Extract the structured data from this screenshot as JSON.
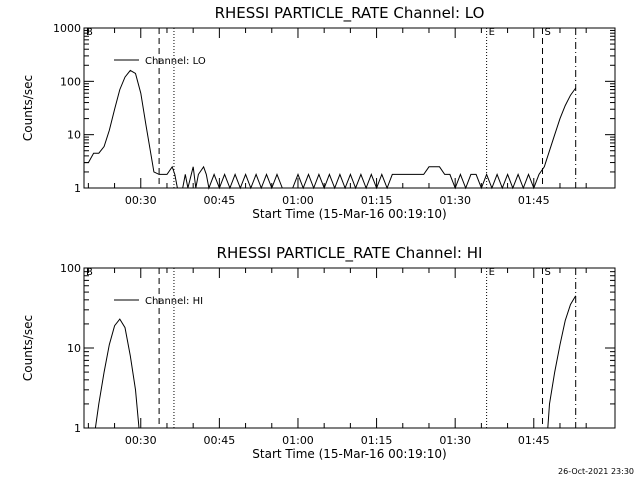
{
  "footer": {
    "timestamp": "26-Oct-2021 23:30"
  },
  "chart_data": [
    {
      "type": "line",
      "title": "RHESSI PARTICLE_RATE Channel: LO",
      "xlabel": "Start Time (15-Mar-16 00:19:10)",
      "ylabel": "Counts/sec",
      "yscale": "log",
      "ylim": [
        1,
        1000
      ],
      "ytick_values": [
        1,
        10,
        100,
        1000
      ],
      "ytick_labels": [
        "1",
        "10",
        "100",
        "1000"
      ],
      "xlim": [
        "00:19:10",
        "02:00:30"
      ],
      "xtick_values": [
        "00:30",
        "00:45",
        "01:00",
        "01:15",
        "01:30",
        "01:45"
      ],
      "xtick_labels": [
        "00:30",
        "00:45",
        "01:00",
        "01:15",
        "01:30",
        "01:45"
      ],
      "legend": {
        "label": "Channel: LO",
        "position": "top-left"
      },
      "markers": [
        {
          "time": "00:19:10",
          "label": "B",
          "style": "dotted"
        },
        {
          "time": "00:33:30",
          "label": "",
          "style": "dashed"
        },
        {
          "time": "00:36:20",
          "label": "",
          "style": "dotted"
        },
        {
          "time": "01:36:00",
          "label": "E",
          "style": "dotted"
        },
        {
          "time": "01:46:40",
          "label": "S",
          "style": "dashed"
        },
        {
          "time": "01:53:00",
          "label": "",
          "style": "dashdot"
        }
      ],
      "series": [
        {
          "name": "Channel: LO",
          "points": [
            [
              "00:19:10",
              3
            ],
            [
              "00:20:00",
              3
            ],
            [
              "00:21:00",
              4.5
            ],
            [
              "00:22:00",
              4.5
            ],
            [
              "00:23:00",
              6
            ],
            [
              "00:24:00",
              12
            ],
            [
              "00:25:00",
              30
            ],
            [
              "00:26:00",
              70
            ],
            [
              "00:27:00",
              120
            ],
            [
              "00:28:00",
              160
            ],
            [
              "00:29:00",
              140
            ],
            [
              "00:30:00",
              60
            ],
            [
              "00:31:00",
              15
            ],
            [
              "00:32:00",
              4
            ],
            [
              "00:32:30",
              2
            ],
            [
              "00:33:30",
              1.8
            ],
            [
              "00:35:00",
              1.8
            ],
            [
              "00:36:00",
              2.5
            ],
            [
              "00:36:30",
              1.8
            ],
            [
              "00:37:00",
              1
            ],
            [
              "00:38:00",
              1
            ],
            [
              "00:38:30",
              1.8
            ],
            [
              "00:39:00",
              1
            ],
            [
              "00:40:00",
              2.5
            ],
            [
              "00:40:30",
              1
            ],
            [
              "00:41:00",
              1.8
            ],
            [
              "00:42:00",
              2.5
            ],
            [
              "00:42:30",
              1.8
            ],
            [
              "00:43:00",
              1
            ],
            [
              "00:44:00",
              1.8
            ],
            [
              "00:45:00",
              1
            ],
            [
              "00:46:00",
              1.8
            ],
            [
              "00:47:00",
              1
            ],
            [
              "00:48:00",
              1.8
            ],
            [
              "00:49:00",
              1
            ],
            [
              "00:50:00",
              1.8
            ],
            [
              "00:51:00",
              1
            ],
            [
              "00:52:00",
              1.8
            ],
            [
              "00:53:00",
              1
            ],
            [
              "00:54:00",
              1.8
            ],
            [
              "00:55:00",
              1
            ],
            [
              "00:56:00",
              1.8
            ],
            [
              "00:57:00",
              1
            ],
            [
              "00:59:00",
              1
            ],
            [
              "01:00:00",
              1.8
            ],
            [
              "01:01:00",
              1
            ],
            [
              "01:02:00",
              1.8
            ],
            [
              "01:03:00",
              1
            ],
            [
              "01:04:00",
              1.8
            ],
            [
              "01:05:00",
              1
            ],
            [
              "01:06:00",
              1.8
            ],
            [
              "01:07:00",
              1
            ],
            [
              "01:08:00",
              1.8
            ],
            [
              "01:09:00",
              1
            ],
            [
              "01:10:00",
              1.8
            ],
            [
              "01:11:00",
              1
            ],
            [
              "01:12:00",
              1.8
            ],
            [
              "01:13:00",
              1
            ],
            [
              "01:14:00",
              1.8
            ],
            [
              "01:15:00",
              1
            ],
            [
              "01:16:00",
              1.8
            ],
            [
              "01:17:00",
              1
            ],
            [
              "01:18:00",
              1.8
            ],
            [
              "01:19:00",
              1.8
            ],
            [
              "01:24:00",
              1.8
            ],
            [
              "01:25:00",
              2.5
            ],
            [
              "01:27:00",
              2.5
            ],
            [
              "01:28:00",
              1.8
            ],
            [
              "01:29:00",
              1.8
            ],
            [
              "01:30:00",
              1
            ],
            [
              "01:31:00",
              1.8
            ],
            [
              "01:32:00",
              1
            ],
            [
              "01:33:00",
              1.8
            ],
            [
              "01:34:00",
              1.8
            ],
            [
              "01:35:00",
              1
            ],
            [
              "01:36:00",
              1.8
            ],
            [
              "01:37:00",
              1
            ],
            [
              "01:38:00",
              1.8
            ],
            [
              "01:39:00",
              1
            ],
            [
              "01:40:00",
              1.8
            ],
            [
              "01:41:00",
              1
            ],
            [
              "01:42:00",
              1.8
            ],
            [
              "01:43:00",
              1
            ],
            [
              "01:44:00",
              1.8
            ],
            [
              "01:45:00",
              1
            ],
            [
              "01:46:00",
              1.8
            ],
            [
              "01:47:00",
              2.5
            ],
            [
              "01:48:00",
              5
            ],
            [
              "01:49:00",
              10
            ],
            [
              "01:50:00",
              20
            ],
            [
              "01:51:00",
              35
            ],
            [
              "01:52:00",
              55
            ],
            [
              "01:53:00",
              75
            ]
          ]
        }
      ]
    },
    {
      "type": "line",
      "title": "RHESSI PARTICLE_RATE Channel: HI",
      "xlabel": "Start Time (15-Mar-16 00:19:10)",
      "ylabel": "Counts/sec",
      "yscale": "log",
      "ylim": [
        1,
        100
      ],
      "ytick_values": [
        1,
        10,
        100
      ],
      "ytick_labels": [
        "1",
        "10",
        "100"
      ],
      "xlim": [
        "00:19:10",
        "02:00:30"
      ],
      "xtick_values": [
        "00:30",
        "00:45",
        "01:00",
        "01:15",
        "01:30",
        "01:45"
      ],
      "xtick_labels": [
        "00:30",
        "00:45",
        "01:00",
        "01:15",
        "01:30",
        "01:45"
      ],
      "legend": {
        "label": "Channel: HI",
        "position": "top-left"
      },
      "markers": [
        {
          "time": "00:19:10",
          "label": "B",
          "style": "dotted"
        },
        {
          "time": "00:33:30",
          "label": "",
          "style": "dashed"
        },
        {
          "time": "00:36:20",
          "label": "",
          "style": "dotted"
        },
        {
          "time": "01:36:00",
          "label": "E",
          "style": "dotted"
        },
        {
          "time": "01:46:40",
          "label": "S",
          "style": "dashed"
        },
        {
          "time": "01:53:00",
          "label": "",
          "style": "dashdot"
        }
      ],
      "series": [
        {
          "name": "Channel: HI",
          "points": [
            [
              "00:21:20",
              1
            ],
            [
              "00:22:00",
              2
            ],
            [
              "00:23:00",
              5
            ],
            [
              "00:24:00",
              11
            ],
            [
              "00:25:00",
              19
            ],
            [
              "00:26:00",
              23
            ],
            [
              "00:27:00",
              18
            ],
            [
              "00:28:00",
              8
            ],
            [
              "00:29:00",
              3
            ],
            [
              "00:29:40",
              1
            ]
          ]
        },
        {
          "name": "Channel: HI",
          "points": [
            [
              "01:47:40",
              1
            ],
            [
              "01:48:00",
              2
            ],
            [
              "01:49:00",
              5
            ],
            [
              "01:50:00",
              11
            ],
            [
              "01:51:00",
              22
            ],
            [
              "01:52:00",
              35
            ],
            [
              "01:53:00",
              45
            ]
          ]
        }
      ]
    }
  ]
}
